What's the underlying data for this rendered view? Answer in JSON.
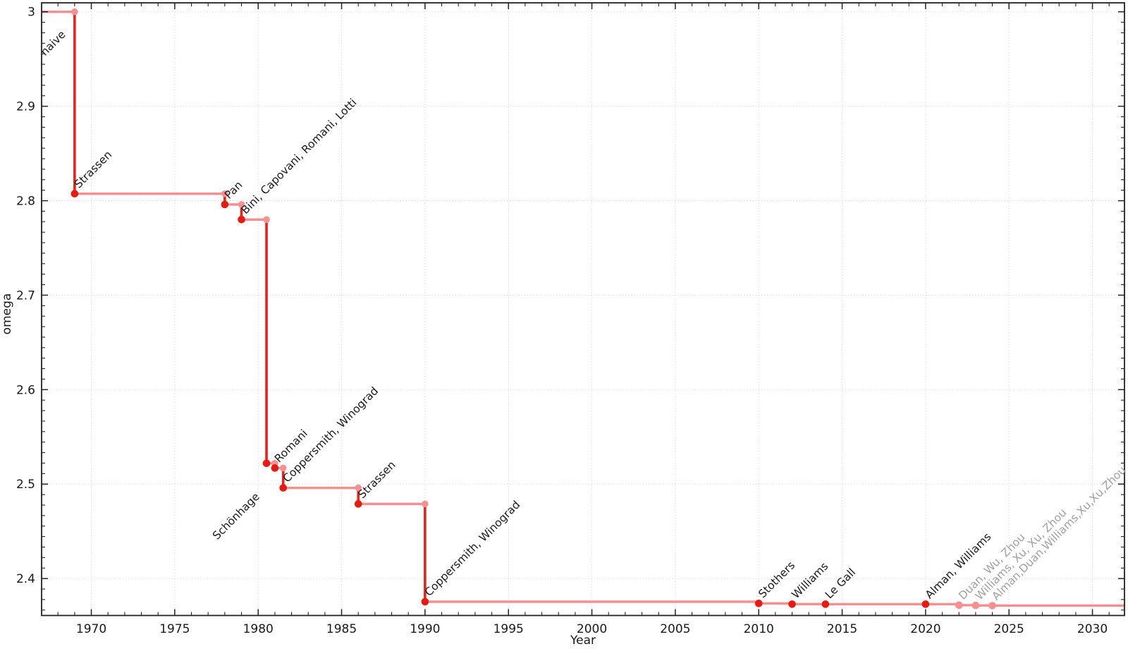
{
  "chart_data": {
    "type": "line",
    "subtype": "step-post",
    "title": "",
    "xlabel": "Year",
    "ylabel": "omega",
    "xlim": [
      1967.02,
      2031.92
    ],
    "ylim": [
      2.3609,
      3.0095
    ],
    "grid": true,
    "legend": "none",
    "x_major_ticks": [
      1970,
      1975,
      1980,
      1985,
      1990,
      1995,
      2000,
      2005,
      2010,
      2015,
      2020,
      2025,
      2030
    ],
    "x_tick_labels": [
      "1970",
      "1975",
      "1980",
      "1985",
      "1990",
      "1995",
      "2000",
      "2005",
      "2010",
      "2015",
      "2020",
      "2025",
      "2030"
    ],
    "y_major_ticks": [
      3.0,
      2.9,
      2.8,
      2.7,
      2.6,
      2.5,
      2.4
    ],
    "y_tick_labels": [
      "3",
      "2.9",
      "2.8",
      "2.7",
      "2.6",
      "2.5",
      "2.4"
    ],
    "x_minor_step": 1,
    "y_minor_step": 0.011111,
    "start": {
      "label": "naive",
      "omega": 3.0
    },
    "events": [
      {
        "year": 1969,
        "x": 1969,
        "omega": 2.8074,
        "label": "Strassen",
        "muted": false
      },
      {
        "year": 1978,
        "x": 1978,
        "omega": 2.796,
        "label": "Pan",
        "muted": false
      },
      {
        "year": 1979,
        "x": 1979,
        "omega": 2.78,
        "label": "Bini, Capovani, Romani, Lotti",
        "muted": false
      },
      {
        "year": 1981,
        "x": 1980.5,
        "omega": 2.522,
        "label": "Schönhage",
        "muted": false,
        "label_side": "below"
      },
      {
        "year": 1981,
        "x": 1981,
        "omega": 2.517,
        "label": "Romani",
        "muted": false
      },
      {
        "year": 1982,
        "x": 1981.5,
        "omega": 2.496,
        "label": "Coppersmith, Winograd",
        "muted": false
      },
      {
        "year": 1986,
        "x": 1986,
        "omega": 2.479,
        "label": "Strassen",
        "muted": false
      },
      {
        "year": 1990,
        "x": 1990,
        "omega": 2.3755,
        "label": "Coppersmith, Winograd",
        "muted": false
      },
      {
        "year": 2010,
        "x": 2010,
        "omega": 2.3737,
        "label": "Stothers",
        "muted": false
      },
      {
        "year": 2012,
        "x": 2012,
        "omega": 2.3729,
        "label": "Williams",
        "muted": false
      },
      {
        "year": 2014,
        "x": 2014,
        "omega": 2.3728639,
        "label": "Le Gall",
        "muted": false
      },
      {
        "year": 2020,
        "x": 2020,
        "omega": 2.3728596,
        "label": "Alman, Williams",
        "muted": false
      },
      {
        "year": 2022,
        "x": 2022,
        "omega": 2.371866,
        "label": "Duan, Wu, Zhou",
        "muted": true
      },
      {
        "year": 2023,
        "x": 2023,
        "omega": 2.371552,
        "label": "Williams, Xu, Xu, Zhou",
        "muted": true
      },
      {
        "year": 2024,
        "x": 2024,
        "omega": 2.371339,
        "label": "Alman,Duan,Williams,Xu,Xu,Zhou",
        "muted": true
      }
    ]
  },
  "colors": {
    "background": "#ffffff",
    "line_light": "#f39191",
    "line_dark": "#e8221a",
    "marker_dark": "#e8190f",
    "marker_light": "#f79090",
    "label": "#1a1a1a",
    "label_muted": "#a0a0a0",
    "tick_label": "#1a1a1a",
    "grid": "#dcdcdc",
    "axis": "#222222"
  }
}
